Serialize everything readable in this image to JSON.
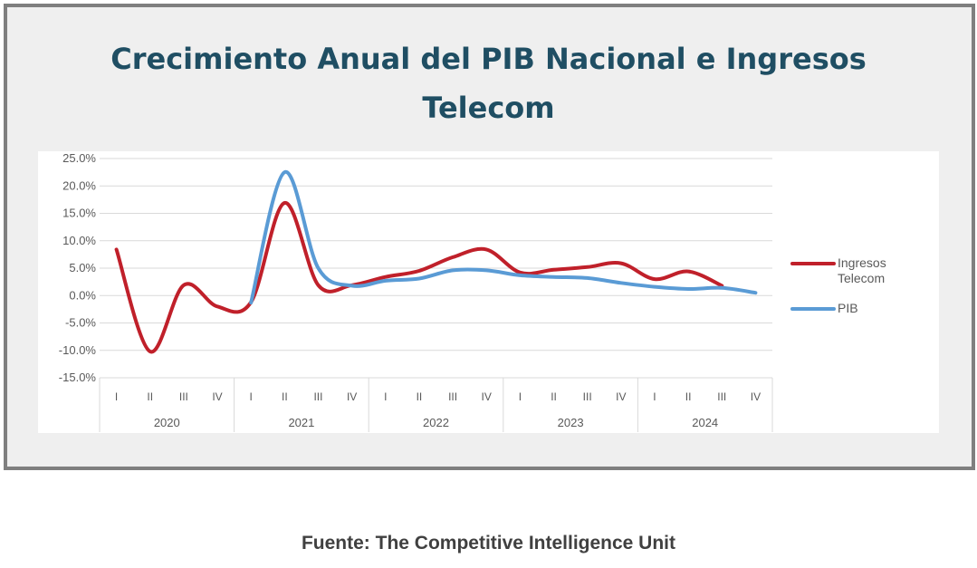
{
  "title_lines": [
    "Crecimiento Anual del PIB Nacional e Ingresos",
    "Telecom"
  ],
  "source": "Fuente: The Competitive Intelligence Unit",
  "chart_data": {
    "type": "line",
    "title": "Crecimiento Anual del PIB Nacional e Ingresos Telecom",
    "xlabel": "",
    "ylabel": "",
    "ylim": [
      -15,
      25
    ],
    "yticks": [
      -15,
      -10,
      -5,
      0,
      5,
      10,
      15,
      20,
      25
    ],
    "ytick_labels": [
      "-15.0%",
      "-10.0%",
      "-5.0%",
      "0.0%",
      "5.0%",
      "10.0%",
      "15.0%",
      "20.0%",
      "25.0%"
    ],
    "grid": true,
    "legend": "right",
    "groups": [
      "2020",
      "2021",
      "2022",
      "2023",
      "2024"
    ],
    "categories": [
      "I",
      "II",
      "III",
      "IV",
      "I",
      "II",
      "III",
      "IV",
      "I",
      "II",
      "III",
      "IV",
      "I",
      "II",
      "III",
      "IV",
      "I",
      "II",
      "III",
      "IV"
    ],
    "series": [
      {
        "name": "Ingresos Telecom",
        "color": "#c0202a",
        "values": [
          8.4,
          -10.2,
          1.9,
          -2.0,
          -1.2,
          16.9,
          1.9,
          1.9,
          3.4,
          4.5,
          7.0,
          8.4,
          4.2,
          4.7,
          5.2,
          5.9,
          3.0,
          4.4,
          1.8,
          null
        ]
      },
      {
        "name": "PIB",
        "color": "#5a9bd5",
        "values": [
          null,
          null,
          null,
          null,
          -1.3,
          22.5,
          5.0,
          1.8,
          2.7,
          3.1,
          4.6,
          4.6,
          3.7,
          3.4,
          3.2,
          2.3,
          1.6,
          1.2,
          1.4,
          0.5
        ]
      }
    ]
  }
}
